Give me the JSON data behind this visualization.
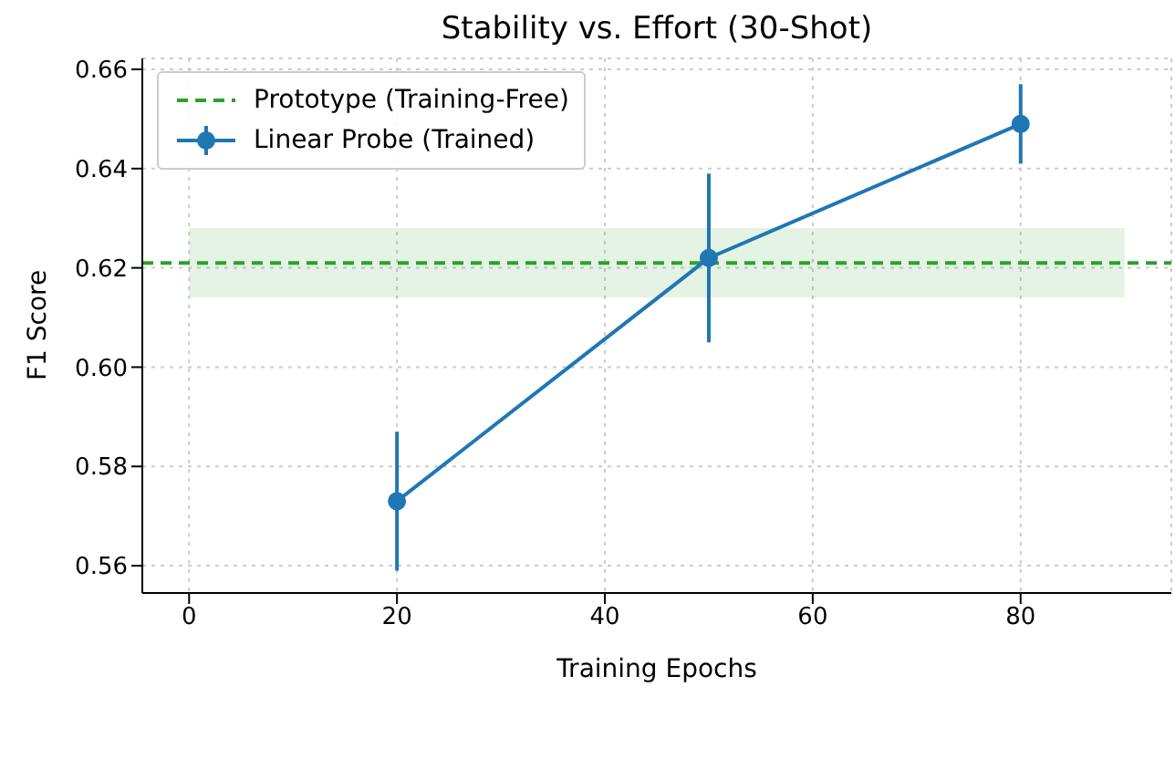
{
  "chart_data": {
    "type": "line",
    "title": "Stability vs. Effort (30-Shot)",
    "xlabel": "Training Epochs",
    "ylabel": "F1 Score",
    "series": [
      {
        "name": "Prototype (Training-Free)",
        "color": "#2ca02c",
        "x": [
          -4.5,
          0,
          90,
          94.5
        ],
        "values": [
          0.621,
          0.621,
          0.621,
          0.621
        ],
        "lower": [
          null,
          0.614,
          0.614,
          null
        ],
        "upper": [
          null,
          0.628,
          0.628,
          null
        ],
        "line_style": "dashed",
        "marker": "none"
      },
      {
        "name": "Linear Probe (Trained)",
        "color": "#1f77b4",
        "x": [
          20,
          50,
          80
        ],
        "values": [
          0.573,
          0.622,
          0.649
        ],
        "errors": [
          0.014,
          0.017,
          0.008
        ],
        "marker": "circle",
        "line_style": "solid"
      }
    ],
    "xlim": [
      -4.5,
      94.5
    ],
    "ylim": [
      0.5545,
      0.6622
    ],
    "xticks": [
      0,
      20,
      40,
      60,
      80
    ],
    "yticks": [
      0.56,
      0.58,
      {
        "value": 0.6,
        "label": "0.60"
      },
      0.62,
      0.64,
      0.66
    ],
    "grid": true,
    "legend": "top left"
  }
}
